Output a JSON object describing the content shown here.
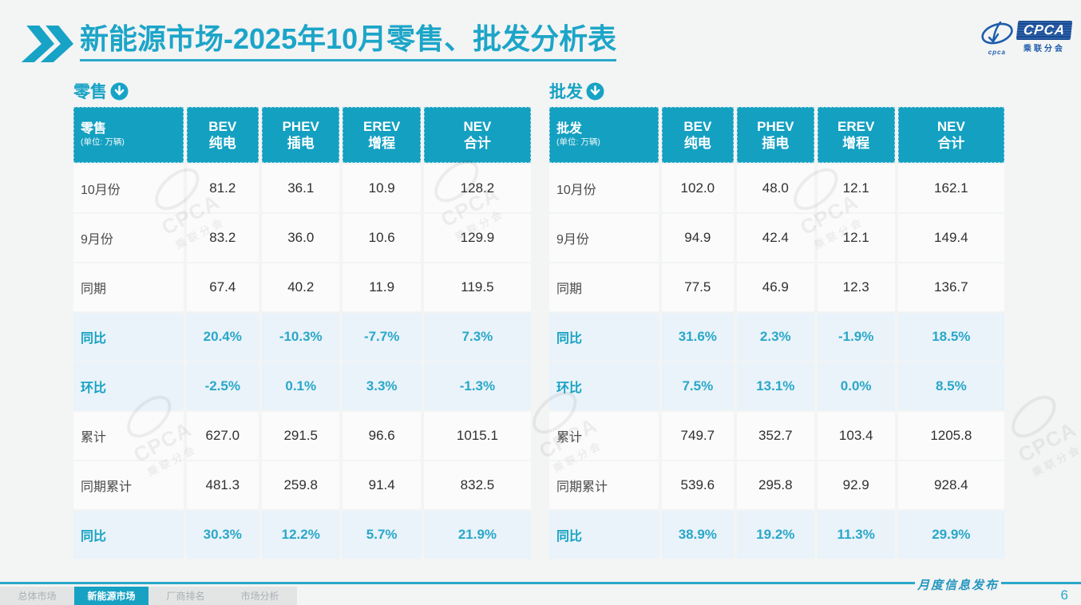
{
  "header": {
    "title_bold": "新能源市场",
    "title_rest": "-2025年10月零售、批发分析表"
  },
  "logo": {
    "name": "CPCA",
    "subtitle": "乘联分会",
    "small": "cpca"
  },
  "watermark": {
    "line1": "CPCA",
    "line2": "乘联分会"
  },
  "colors": {
    "teal": "#17a2c4",
    "header_bg": "#14a0c1",
    "percent_text": "#2aa7c9",
    "percent_row_bg": "#e9f3f9",
    "navy": "#1d5caa",
    "page_bg": "#f3f4f4"
  },
  "tables": [
    {
      "id": "retail",
      "section_label": "零售",
      "corner": {
        "label": "零售",
        "unit": "(单位: 万辆)"
      },
      "columns": [
        {
          "en": "BEV",
          "zh": "纯电"
        },
        {
          "en": "PHEV",
          "zh": "插电"
        },
        {
          "en": "EREV",
          "zh": "增程"
        },
        {
          "en": "NEV",
          "zh": "合计"
        }
      ],
      "rows": [
        {
          "label": "10月份",
          "type": "value",
          "values": [
            "81.2",
            "36.1",
            "10.9",
            "128.2"
          ]
        },
        {
          "label": "9月份",
          "type": "value",
          "values": [
            "83.2",
            "36.0",
            "10.6",
            "129.9"
          ]
        },
        {
          "label": "同期",
          "type": "value",
          "values": [
            "67.4",
            "40.2",
            "11.9",
            "119.5"
          ]
        },
        {
          "label": "同比",
          "type": "percent",
          "values": [
            "20.4%",
            "-10.3%",
            "-7.7%",
            "7.3%"
          ]
        },
        {
          "label": "环比",
          "type": "percent",
          "values": [
            "-2.5%",
            "0.1%",
            "3.3%",
            "-1.3%"
          ]
        },
        {
          "label": "累计",
          "type": "value",
          "values": [
            "627.0",
            "291.5",
            "96.6",
            "1015.1"
          ]
        },
        {
          "label": "同期累计",
          "type": "value",
          "values": [
            "481.3",
            "259.8",
            "91.4",
            "832.5"
          ]
        },
        {
          "label": "同比",
          "type": "percent",
          "values": [
            "30.3%",
            "12.2%",
            "5.7%",
            "21.9%"
          ]
        }
      ]
    },
    {
      "id": "wholesale",
      "section_label": "批发",
      "corner": {
        "label": "批发",
        "unit": "(单位: 万辆)"
      },
      "columns": [
        {
          "en": "BEV",
          "zh": "纯电"
        },
        {
          "en": "PHEV",
          "zh": "插电"
        },
        {
          "en": "EREV",
          "zh": "增程"
        },
        {
          "en": "NEV",
          "zh": "合计"
        }
      ],
      "rows": [
        {
          "label": "10月份",
          "type": "value",
          "values": [
            "102.0",
            "48.0",
            "12.1",
            "162.1"
          ]
        },
        {
          "label": "9月份",
          "type": "value",
          "values": [
            "94.9",
            "42.4",
            "12.1",
            "149.4"
          ]
        },
        {
          "label": "同期",
          "type": "value",
          "values": [
            "77.5",
            "46.9",
            "12.3",
            "136.7"
          ]
        },
        {
          "label": "同比",
          "type": "percent",
          "values": [
            "31.6%",
            "2.3%",
            "-1.9%",
            "18.5%"
          ]
        },
        {
          "label": "环比",
          "type": "percent",
          "values": [
            "7.5%",
            "13.1%",
            "0.0%",
            "8.5%"
          ]
        },
        {
          "label": "累计",
          "type": "value",
          "values": [
            "749.7",
            "352.7",
            "103.4",
            "1205.8"
          ]
        },
        {
          "label": "同期累计",
          "type": "value",
          "values": [
            "539.6",
            "295.8",
            "92.9",
            "928.4"
          ]
        },
        {
          "label": "同比",
          "type": "percent",
          "values": [
            "38.9%",
            "19.2%",
            "11.3%",
            "29.9%"
          ]
        }
      ]
    }
  ],
  "footer": {
    "tabs": [
      {
        "label": "总体市场",
        "active": false
      },
      {
        "label": "新能源市场",
        "active": true
      },
      {
        "label": "厂商排名",
        "active": false
      },
      {
        "label": "市场分析",
        "active": false
      }
    ],
    "ribbon_label": "月度信息发布",
    "page_number": "6"
  }
}
